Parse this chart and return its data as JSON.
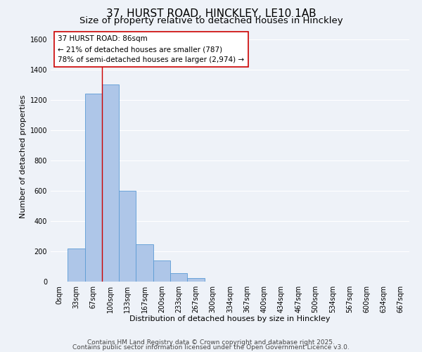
{
  "title": "37, HURST ROAD, HINCKLEY, LE10 1AB",
  "subtitle": "Size of property relative to detached houses in Hinckley",
  "xlabel": "Distribution of detached houses by size in Hinckley",
  "ylabel": "Number of detached properties",
  "bar_labels": [
    "0sqm",
    "33sqm",
    "67sqm",
    "100sqm",
    "133sqm",
    "167sqm",
    "200sqm",
    "233sqm",
    "267sqm",
    "300sqm",
    "334sqm",
    "367sqm",
    "400sqm",
    "434sqm",
    "467sqm",
    "500sqm",
    "534sqm",
    "567sqm",
    "600sqm",
    "634sqm",
    "667sqm"
  ],
  "bar_values": [
    0,
    220,
    1240,
    1300,
    600,
    245,
    140,
    55,
    25,
    0,
    0,
    0,
    0,
    0,
    0,
    0,
    0,
    0,
    0,
    0,
    0
  ],
  "bar_color": "#aec6e8",
  "bar_edge_color": "#5b9bd5",
  "ylim": [
    0,
    1650
  ],
  "yticks": [
    0,
    200,
    400,
    600,
    800,
    1000,
    1200,
    1400,
    1600
  ],
  "vline_x": 3.0,
  "vline_color": "#cc0000",
  "annotation_title": "37 HURST ROAD: 86sqm",
  "annotation_line1": "← 21% of detached houses are smaller (787)",
  "annotation_line2": "78% of semi-detached houses are larger (2,974) →",
  "annotation_box_color": "#ffffff",
  "annotation_box_edge": "#cc0000",
  "footer1": "Contains HM Land Registry data © Crown copyright and database right 2025.",
  "footer2": "Contains public sector information licensed under the Open Government Licence v3.0.",
  "background_color": "#eef2f8",
  "grid_color": "#ffffff",
  "title_fontsize": 11,
  "subtitle_fontsize": 9.5,
  "axis_label_fontsize": 8,
  "tick_fontsize": 7,
  "footer_fontsize": 6.5,
  "ann_fontsize": 7.5
}
